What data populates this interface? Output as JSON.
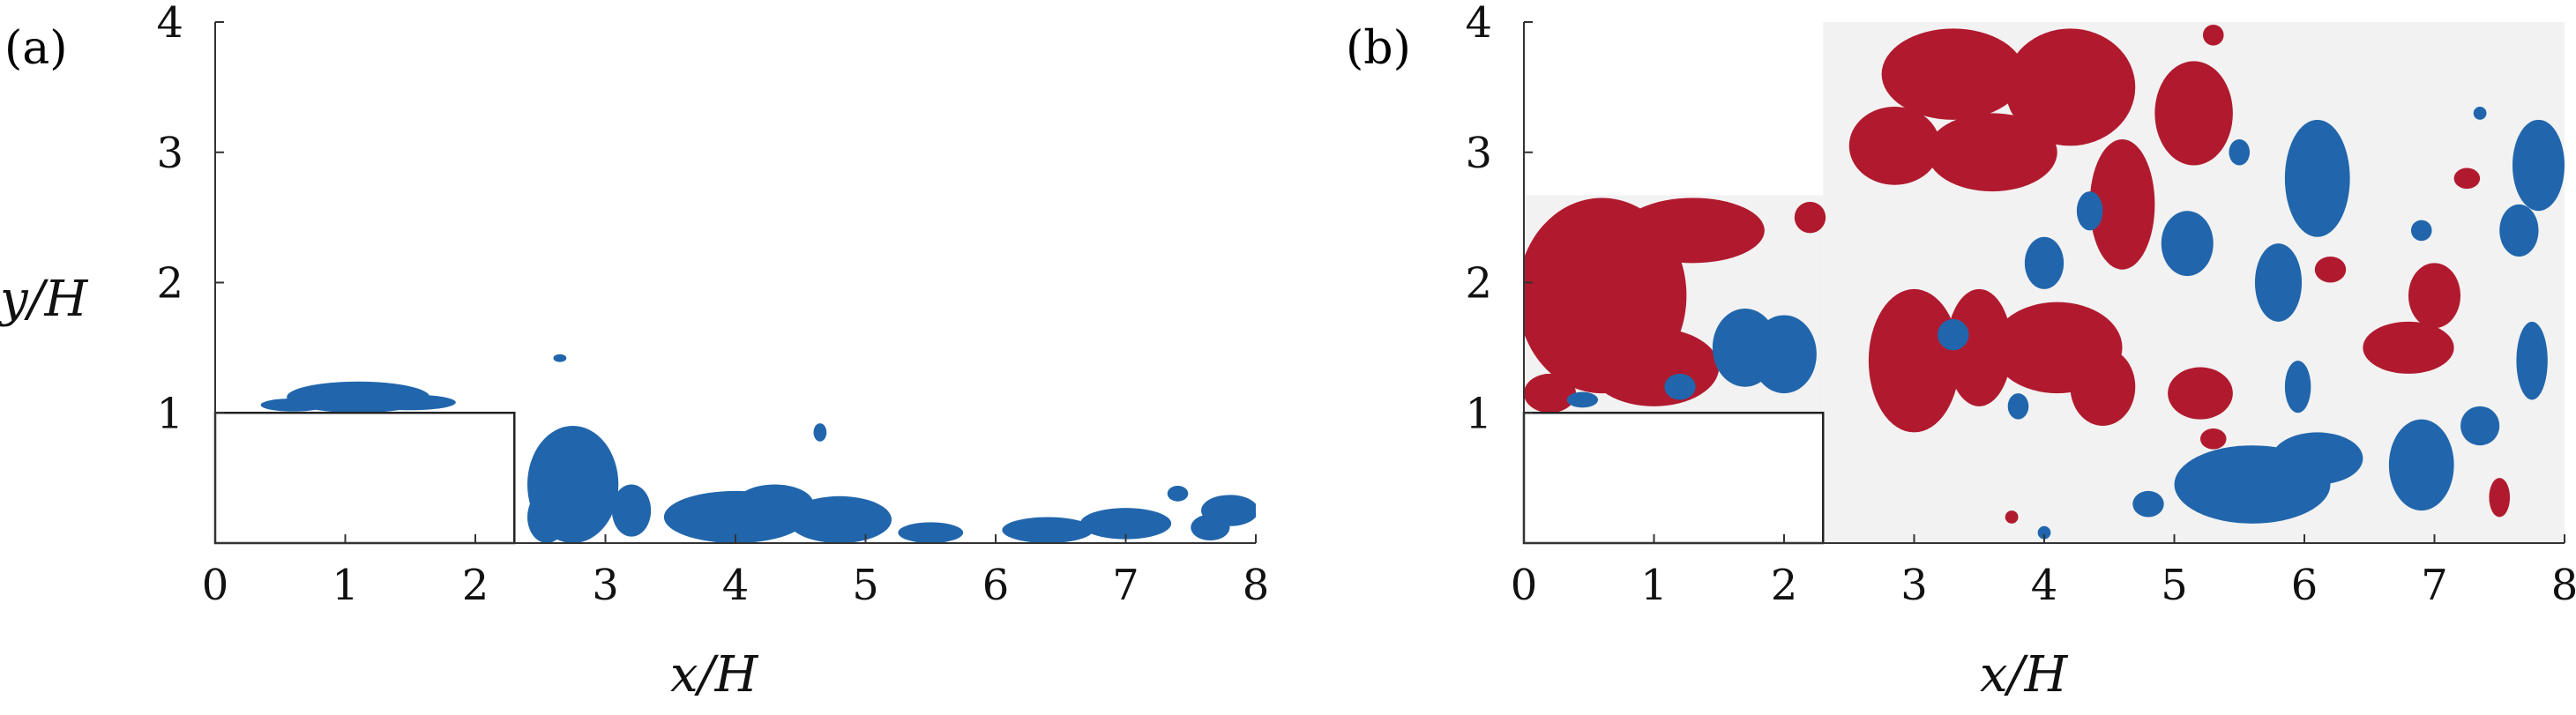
{
  "colors": {
    "negative_region": "#b11a2e",
    "positive_region": "#2166ac",
    "background_field": "#f2f2f2",
    "step": "#ffffff"
  },
  "chart_data": [
    {
      "type": "heatmap",
      "panel_label": "(a)",
      "xlabel": "x/H",
      "ylabel": "y/H",
      "xlim": [
        0,
        8
      ],
      "ylim": [
        0,
        4
      ],
      "x_ticks": [
        "0",
        "1",
        "2",
        "3",
        "4",
        "5",
        "6",
        "7",
        "8"
      ],
      "y_ticks": [
        "1",
        "2",
        "3",
        "4"
      ],
      "step": {
        "x": [
          0,
          2.3
        ],
        "y": [
          0,
          1
        ]
      },
      "regions": [
        {
          "series": "blue",
          "x": 1.1,
          "y": 1.12,
          "rx": 0.55,
          "ry": 0.12
        },
        {
          "series": "blue",
          "x": 0.6,
          "y": 1.06,
          "rx": 0.25,
          "ry": 0.05
        },
        {
          "series": "blue",
          "x": 1.5,
          "y": 1.08,
          "rx": 0.35,
          "ry": 0.06
        },
        {
          "series": "blue",
          "x": 2.75,
          "y": 0.45,
          "rx": 0.35,
          "ry": 0.45
        },
        {
          "series": "blue",
          "x": 2.55,
          "y": 0.2,
          "rx": 0.15,
          "ry": 0.2
        },
        {
          "series": "blue",
          "x": 3.2,
          "y": 0.25,
          "rx": 0.15,
          "ry": 0.2
        },
        {
          "series": "blue",
          "x": 2.65,
          "y": 1.42,
          "rx": 0.05,
          "ry": 0.03
        },
        {
          "series": "blue",
          "x": 4.0,
          "y": 0.2,
          "rx": 0.55,
          "ry": 0.2
        },
        {
          "series": "blue",
          "x": 4.3,
          "y": 0.3,
          "rx": 0.3,
          "ry": 0.15
        },
        {
          "series": "blue",
          "x": 4.8,
          "y": 0.18,
          "rx": 0.4,
          "ry": 0.18
        },
        {
          "series": "blue",
          "x": 5.5,
          "y": 0.08,
          "rx": 0.25,
          "ry": 0.08
        },
        {
          "series": "blue",
          "x": 4.65,
          "y": 0.85,
          "rx": 0.05,
          "ry": 0.07
        },
        {
          "series": "blue",
          "x": 6.4,
          "y": 0.1,
          "rx": 0.35,
          "ry": 0.1
        },
        {
          "series": "blue",
          "x": 7.0,
          "y": 0.15,
          "rx": 0.35,
          "ry": 0.12
        },
        {
          "series": "blue",
          "x": 7.4,
          "y": 0.38,
          "rx": 0.08,
          "ry": 0.06
        },
        {
          "series": "blue",
          "x": 7.8,
          "y": 0.25,
          "rx": 0.22,
          "ry": 0.12
        },
        {
          "series": "blue",
          "x": 7.65,
          "y": 0.12,
          "rx": 0.15,
          "ry": 0.1
        }
      ]
    },
    {
      "type": "heatmap",
      "panel_label": "(b)",
      "xlabel": "x/H",
      "ylabel": "",
      "xlim": [
        0,
        8
      ],
      "ylim": [
        0,
        4
      ],
      "x_ticks": [
        "0",
        "1",
        "2",
        "3",
        "4",
        "5",
        "6",
        "7",
        "8"
      ],
      "y_ticks": [
        "1",
        "2",
        "3",
        "4"
      ],
      "step": {
        "x": [
          0,
          2.3
        ],
        "y": [
          0,
          1
        ]
      },
      "measured_area": [
        {
          "x": [
            0,
            2.3
          ],
          "y": [
            1,
            2.67
          ]
        },
        {
          "x": [
            2.3,
            8
          ],
          "y": [
            0,
            4
          ]
        }
      ],
      "regions": [
        {
          "series": "red",
          "x": 0.6,
          "y": 1.9,
          "rx": 0.65,
          "ry": 0.75
        },
        {
          "series": "red",
          "x": 1.3,
          "y": 2.4,
          "rx": 0.55,
          "ry": 0.25
        },
        {
          "series": "red",
          "x": 1.0,
          "y": 1.35,
          "rx": 0.5,
          "ry": 0.3
        },
        {
          "series": "red",
          "x": 0.2,
          "y": 1.15,
          "rx": 0.2,
          "ry": 0.15
        },
        {
          "series": "red",
          "x": 2.2,
          "y": 2.5,
          "rx": 0.12,
          "ry": 0.12
        },
        {
          "series": "blue",
          "x": 1.7,
          "y": 1.5,
          "rx": 0.25,
          "ry": 0.3
        },
        {
          "series": "blue",
          "x": 2.0,
          "y": 1.45,
          "rx": 0.25,
          "ry": 0.3
        },
        {
          "series": "blue",
          "x": 1.2,
          "y": 1.2,
          "rx": 0.12,
          "ry": 0.1
        },
        {
          "series": "blue",
          "x": 0.45,
          "y": 1.1,
          "rx": 0.12,
          "ry": 0.06
        },
        {
          "series": "red",
          "x": 3.3,
          "y": 3.6,
          "rx": 0.55,
          "ry": 0.35
        },
        {
          "series": "red",
          "x": 4.2,
          "y": 3.5,
          "rx": 0.5,
          "ry": 0.45
        },
        {
          "series": "red",
          "x": 5.15,
          "y": 3.3,
          "rx": 0.3,
          "ry": 0.4
        },
        {
          "series": "red",
          "x": 3.6,
          "y": 3.0,
          "rx": 0.5,
          "ry": 0.3
        },
        {
          "series": "red",
          "x": 4.6,
          "y": 2.6,
          "rx": 0.25,
          "ry": 0.5
        },
        {
          "series": "red",
          "x": 2.85,
          "y": 3.05,
          "rx": 0.35,
          "ry": 0.3
        },
        {
          "series": "red",
          "x": 3.0,
          "y": 1.4,
          "rx": 0.35,
          "ry": 0.55
        },
        {
          "series": "red",
          "x": 3.5,
          "y": 1.5,
          "rx": 0.25,
          "ry": 0.45
        },
        {
          "series": "red",
          "x": 4.1,
          "y": 1.5,
          "rx": 0.5,
          "ry": 0.35
        },
        {
          "series": "red",
          "x": 4.45,
          "y": 1.2,
          "rx": 0.25,
          "ry": 0.3
        },
        {
          "series": "red",
          "x": 5.2,
          "y": 1.15,
          "rx": 0.25,
          "ry": 0.2
        },
        {
          "series": "red",
          "x": 6.8,
          "y": 1.5,
          "rx": 0.35,
          "ry": 0.2
        },
        {
          "series": "red",
          "x": 7.0,
          "y": 1.9,
          "rx": 0.2,
          "ry": 0.25
        },
        {
          "series": "red",
          "x": 7.5,
          "y": 0.35,
          "rx": 0.08,
          "ry": 0.15
        },
        {
          "series": "red",
          "x": 7.25,
          "y": 2.8,
          "rx": 0.1,
          "ry": 0.08
        },
        {
          "series": "red",
          "x": 5.3,
          "y": 0.8,
          "rx": 0.1,
          "ry": 0.08
        },
        {
          "series": "red",
          "x": 6.2,
          "y": 2.1,
          "rx": 0.12,
          "ry": 0.1
        },
        {
          "series": "red",
          "x": 3.75,
          "y": 0.2,
          "rx": 0.05,
          "ry": 0.05
        },
        {
          "series": "red",
          "x": 5.3,
          "y": 3.9,
          "rx": 0.08,
          "ry": 0.08
        },
        {
          "series": "blue",
          "x": 6.1,
          "y": 2.8,
          "rx": 0.25,
          "ry": 0.45
        },
        {
          "series": "blue",
          "x": 5.8,
          "y": 2.0,
          "rx": 0.18,
          "ry": 0.3
        },
        {
          "series": "blue",
          "x": 5.95,
          "y": 1.2,
          "rx": 0.1,
          "ry": 0.2
        },
        {
          "series": "blue",
          "x": 5.6,
          "y": 0.45,
          "rx": 0.6,
          "ry": 0.3
        },
        {
          "series": "blue",
          "x": 6.1,
          "y": 0.65,
          "rx": 0.35,
          "ry": 0.2
        },
        {
          "series": "blue",
          "x": 6.9,
          "y": 0.6,
          "rx": 0.25,
          "ry": 0.35
        },
        {
          "series": "blue",
          "x": 7.35,
          "y": 0.9,
          "rx": 0.15,
          "ry": 0.15
        },
        {
          "series": "blue",
          "x": 7.8,
          "y": 2.9,
          "rx": 0.2,
          "ry": 0.35
        },
        {
          "series": "blue",
          "x": 7.65,
          "y": 2.4,
          "rx": 0.15,
          "ry": 0.2
        },
        {
          "series": "blue",
          "x": 7.75,
          "y": 1.4,
          "rx": 0.12,
          "ry": 0.3
        },
        {
          "series": "blue",
          "x": 4.0,
          "y": 2.15,
          "rx": 0.15,
          "ry": 0.2
        },
        {
          "series": "blue",
          "x": 4.35,
          "y": 2.55,
          "rx": 0.1,
          "ry": 0.15
        },
        {
          "series": "blue",
          "x": 5.1,
          "y": 2.3,
          "rx": 0.2,
          "ry": 0.25
        },
        {
          "series": "blue",
          "x": 3.3,
          "y": 1.6,
          "rx": 0.12,
          "ry": 0.12
        },
        {
          "series": "blue",
          "x": 3.8,
          "y": 1.05,
          "rx": 0.08,
          "ry": 0.1
        },
        {
          "series": "blue",
          "x": 4.8,
          "y": 0.3,
          "rx": 0.12,
          "ry": 0.1
        },
        {
          "series": "blue",
          "x": 6.9,
          "y": 2.4,
          "rx": 0.08,
          "ry": 0.08
        },
        {
          "series": "blue",
          "x": 7.35,
          "y": 3.3,
          "rx": 0.05,
          "ry": 0.05
        },
        {
          "series": "blue",
          "x": 4.0,
          "y": 0.08,
          "rx": 0.05,
          "ry": 0.05
        },
        {
          "series": "blue",
          "x": 5.5,
          "y": 3.0,
          "rx": 0.08,
          "ry": 0.1
        }
      ]
    }
  ]
}
